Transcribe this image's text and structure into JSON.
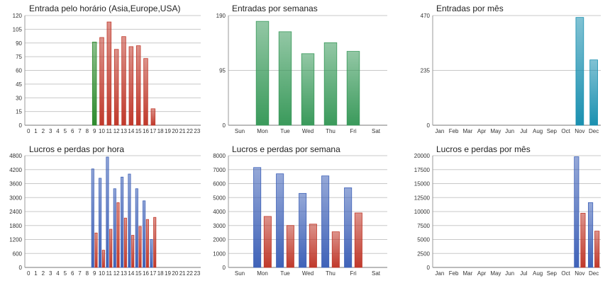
{
  "chart_data": [
    {
      "type": "bar",
      "title": "Entrada pelo horário (Asia,Europe,USA)",
      "categories": [
        "0",
        "1",
        "2",
        "3",
        "4",
        "5",
        "6",
        "7",
        "8",
        "9",
        "10",
        "11",
        "12",
        "13",
        "14",
        "15",
        "16",
        "17",
        "18",
        "19",
        "20",
        "21",
        "22",
        "23"
      ],
      "ylim": [
        0,
        120
      ],
      "yticks": [
        0,
        15,
        30,
        45,
        60,
        75,
        90,
        105,
        120
      ],
      "series": [
        {
          "values": [
            null,
            null,
            null,
            null,
            null,
            null,
            null,
            null,
            null,
            91,
            96,
            113,
            83,
            97,
            86,
            87,
            73,
            18,
            null,
            null,
            null,
            null,
            null,
            null
          ]
        }
      ],
      "colors": {
        "highlight": "#2e8b2e",
        "bars": "#c0392b"
      },
      "grid": true
    },
    {
      "type": "bar",
      "title": "Entradas por semanas",
      "categories": [
        "Sun",
        "Mon",
        "Tue",
        "Wed",
        "Thu",
        "Fri",
        "Sat"
      ],
      "ylim": [
        0,
        190
      ],
      "yticks": [
        0,
        95,
        190
      ],
      "series": [
        {
          "values": [
            null,
            180,
            162,
            124,
            143,
            128,
            null
          ]
        }
      ],
      "colors": {
        "bars": "#3a9a5b"
      },
      "grid": true
    },
    {
      "type": "bar",
      "title": "Entradas por mês",
      "categories": [
        "Jan",
        "Feb",
        "Mar",
        "Apr",
        "May",
        "Jun",
        "Jul",
        "Aug",
        "Sep",
        "Oct",
        "Nov",
        "Dec"
      ],
      "ylim": [
        0,
        470
      ],
      "yticks": [
        0,
        235,
        470
      ],
      "series": [
        {
          "values": [
            null,
            null,
            null,
            null,
            null,
            null,
            null,
            null,
            null,
            null,
            462,
            280
          ]
        }
      ],
      "colors": {
        "bars": "#1a90b0"
      },
      "grid": true
    },
    {
      "type": "bar",
      "title": "Lucros e perdas por hora",
      "categories": [
        "0",
        "1",
        "2",
        "3",
        "4",
        "5",
        "6",
        "7",
        "8",
        "9",
        "10",
        "11",
        "12",
        "13",
        "14",
        "15",
        "16",
        "17",
        "18",
        "19",
        "20",
        "21",
        "22",
        "23"
      ],
      "ylim": [
        0,
        4800
      ],
      "yticks": [
        0,
        600,
        1200,
        1800,
        2400,
        3000,
        3600,
        4200,
        4800
      ],
      "series": [
        {
          "values": [
            null,
            null,
            null,
            null,
            null,
            null,
            null,
            null,
            null,
            4230,
            3830,
            4740,
            3380,
            3880,
            4010,
            3380,
            2860,
            1200,
            null,
            null,
            null,
            null,
            null,
            null
          ]
        },
        {
          "values": [
            null,
            null,
            null,
            null,
            null,
            null,
            null,
            null,
            null,
            1480,
            740,
            1640,
            2780,
            2120,
            1380,
            1760,
            2060,
            2150,
            null,
            null,
            null,
            null,
            null,
            null
          ]
        }
      ],
      "colors": {
        "series1": "#3f62b8",
        "series2": "#c0392b"
      },
      "grid": true
    },
    {
      "type": "bar",
      "title": "Lucros e perdas por semana",
      "categories": [
        "Sun",
        "Mon",
        "Tue",
        "Wed",
        "Thu",
        "Fri",
        "Sat"
      ],
      "ylim": [
        0,
        8000
      ],
      "yticks": [
        0,
        1000,
        2000,
        3000,
        4000,
        5000,
        6000,
        7000,
        8000
      ],
      "series": [
        {
          "values": [
            null,
            7150,
            6700,
            5300,
            6550,
            5700,
            null
          ]
        },
        {
          "values": [
            null,
            3650,
            3000,
            3100,
            2550,
            3900,
            null
          ]
        }
      ],
      "colors": {
        "series1": "#3f62b8",
        "series2": "#c0392b"
      },
      "grid": true
    },
    {
      "type": "bar",
      "title": "Lucros e perdas por mês",
      "categories": [
        "Jan",
        "Feb",
        "Mar",
        "Apr",
        "May",
        "Jun",
        "Jul",
        "Aug",
        "Sep",
        "Oct",
        "Nov",
        "Dec"
      ],
      "ylim": [
        0,
        20000
      ],
      "yticks": [
        0,
        2500,
        5000,
        7500,
        10000,
        12500,
        15000,
        17500,
        20000
      ],
      "series": [
        {
          "values": [
            null,
            null,
            null,
            null,
            null,
            null,
            null,
            null,
            null,
            null,
            19800,
            11600
          ]
        },
        {
          "values": [
            null,
            null,
            null,
            null,
            null,
            null,
            null,
            null,
            null,
            null,
            9700,
            6500
          ]
        }
      ],
      "colors": {
        "series1": "#3f62b8",
        "series2": "#c0392b"
      },
      "grid": true
    }
  ]
}
